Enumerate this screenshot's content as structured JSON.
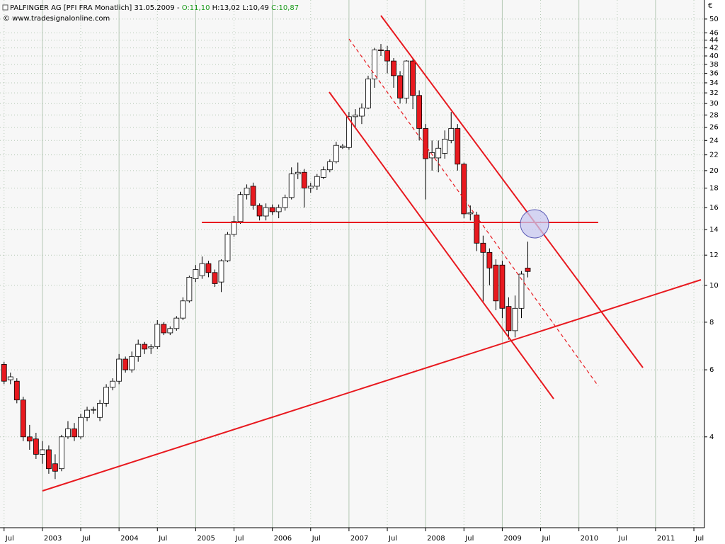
{
  "chart_data": {
    "type": "candlestick",
    "title": "PALFINGER AG [PFI FRA  Monatlich] 31.05.2009 -",
    "ohlc_labels": [
      "O:11,10",
      "H:13,02",
      "L:10,49",
      "C:10,87"
    ],
    "credit": "© www.tradesignalonline.com",
    "currency": "€",
    "log_y": true,
    "grid": true,
    "up_color": "#ffffff",
    "down_color": "#e8191f",
    "x": [
      "2002-07",
      "2002-08",
      "2002-09",
      "2002-10",
      "2002-11",
      "2002-12",
      "2003-01",
      "2003-02",
      "2003-03",
      "2003-04",
      "2003-05",
      "2003-06",
      "2003-07",
      "2003-08",
      "2003-09",
      "2003-10",
      "2003-11",
      "2003-12",
      "2004-01",
      "2004-02",
      "2004-03",
      "2004-04",
      "2004-05",
      "2004-06",
      "2004-07",
      "2004-08",
      "2004-09",
      "2004-10",
      "2004-11",
      "2004-12",
      "2005-01",
      "2005-02",
      "2005-03",
      "2005-04",
      "2005-05",
      "2005-06",
      "2005-07",
      "2005-08",
      "2005-09",
      "2005-10",
      "2005-11",
      "2005-12",
      "2006-01",
      "2006-02",
      "2006-03",
      "2006-04",
      "2006-05",
      "2006-06",
      "2006-07",
      "2006-08",
      "2006-09",
      "2006-10",
      "2006-11",
      "2006-12",
      "2007-01",
      "2007-02",
      "2007-03",
      "2007-04",
      "2007-05",
      "2007-06",
      "2007-07",
      "2007-08",
      "2007-09",
      "2007-10",
      "2007-11",
      "2007-12",
      "2008-01",
      "2008-02",
      "2008-03",
      "2008-04",
      "2008-05",
      "2008-06",
      "2008-07",
      "2008-08",
      "2008-09",
      "2008-10",
      "2008-11",
      "2008-12",
      "2009-01",
      "2009-02",
      "2009-03",
      "2009-04",
      "2009-05"
    ],
    "open": [
      6.2,
      5.65,
      5.6,
      5.0,
      4.0,
      3.95,
      3.6,
      3.7,
      3.4,
      3.3,
      4.0,
      4.2,
      4.0,
      4.5,
      4.7,
      4.5,
      4.9,
      5.4,
      5.6,
      6.4,
      6.0,
      6.5,
      7.0,
      6.85,
      6.9,
      7.9,
      7.5,
      7.7,
      8.2,
      9.1,
      10.4,
      10.6,
      11.4,
      10.8,
      10.2,
      11.6,
      13.6,
      14.7,
      17.3,
      18.2,
      16.2,
      15.2,
      16.0,
      15.6,
      16.0,
      17.0,
      19.6,
      19.8,
      18.0,
      18.2,
      19.2,
      20.1,
      21.1,
      23.0,
      23.0,
      27.7,
      27.8,
      29.2,
      34.8,
      41.5,
      41.3,
      38.8,
      35.5,
      31.0,
      38.8,
      31.5,
      25.8,
      21.6,
      21.6,
      22.2,
      24.0,
      25.8,
      20.8,
      15.4,
      15.3,
      12.9,
      12.2,
      11.3,
      11.3,
      8.8,
      7.6,
      8.7,
      11.1
    ],
    "high": [
      6.3,
      5.9,
      5.7,
      5.1,
      4.3,
      4.1,
      3.9,
      3.8,
      3.6,
      4.05,
      4.4,
      4.35,
      4.6,
      4.8,
      4.8,
      5.0,
      5.5,
      5.7,
      6.6,
      6.5,
      6.7,
      7.2,
      7.1,
      7.0,
      8.1,
      8.0,
      7.8,
      8.3,
      9.3,
      10.6,
      11.3,
      11.9,
      11.6,
      11.0,
      11.7,
      13.8,
      15.2,
      17.6,
      18.4,
      18.6,
      16.4,
      16.4,
      16.3,
      16.3,
      17.3,
      20.4,
      21.0,
      20.2,
      18.6,
      19.6,
      20.5,
      21.4,
      23.8,
      23.5,
      28.5,
      29.0,
      30.0,
      35.5,
      42.0,
      43.0,
      42.5,
      39.5,
      36.5,
      39.0,
      39.2,
      32.5,
      26.5,
      24.0,
      24.0,
      25.5,
      28.5,
      26.5,
      21.0,
      16.2,
      15.6,
      13.5,
      12.5,
      11.7,
      11.6,
      9.3,
      9.4,
      10.9,
      13.02
    ],
    "low": [
      5.5,
      5.5,
      4.9,
      3.9,
      3.7,
      3.5,
      3.4,
      3.2,
      3.1,
      3.25,
      3.95,
      3.9,
      3.95,
      4.4,
      4.6,
      4.4,
      4.8,
      5.3,
      5.5,
      5.9,
      5.9,
      6.3,
      6.6,
      6.6,
      6.8,
      7.4,
      7.4,
      7.6,
      8.1,
      9.0,
      10.2,
      10.4,
      10.5,
      9.9,
      9.6,
      11.5,
      13.4,
      14.5,
      16.8,
      15.8,
      14.8,
      14.8,
      15.3,
      15.0,
      15.7,
      16.8,
      19.0,
      16.0,
      17.5,
      17.8,
      19.0,
      19.8,
      20.9,
      22.8,
      22.7,
      26.0,
      26.5,
      29.0,
      33.0,
      40.0,
      36.0,
      33.0,
      30.0,
      30.0,
      29.0,
      24.0,
      16.8,
      20.0,
      19.8,
      21.5,
      23.6,
      20.0,
      15.0,
      14.8,
      12.3,
      9.0,
      10.0,
      8.6,
      8.2,
      7.2,
      7.3,
      8.2,
      10.49
    ],
    "close": [
      5.6,
      5.75,
      5.0,
      4.0,
      3.9,
      3.6,
      3.7,
      3.3,
      3.25,
      4.0,
      4.2,
      4.0,
      4.5,
      4.7,
      4.72,
      4.9,
      5.4,
      5.6,
      6.4,
      6.0,
      6.5,
      7.0,
      6.8,
      6.9,
      7.9,
      7.5,
      7.7,
      8.2,
      9.1,
      10.5,
      11.0,
      11.4,
      10.8,
      10.1,
      11.6,
      13.6,
      14.7,
      17.3,
      18.0,
      16.2,
      15.2,
      16.0,
      15.6,
      16.0,
      17.0,
      19.6,
      19.8,
      18.0,
      18.2,
      19.3,
      20.1,
      21.1,
      23.3,
      23.2,
      27.7,
      28.0,
      29.2,
      34.8,
      41.5,
      41.3,
      38.8,
      35.5,
      31.0,
      38.8,
      31.5,
      25.8,
      21.5,
      22.3,
      22.9,
      24.2,
      25.8,
      20.8,
      15.4,
      15.5,
      12.9,
      12.2,
      11.1,
      9.1,
      8.7,
      7.6,
      8.7,
      10.7,
      10.87
    ],
    "xlim": [
      "2002-06-12",
      "2011-08-21"
    ],
    "xticks": [
      {
        "value": "2002-07",
        "label": "Jul"
      },
      {
        "value": "2003-01",
        "label": "2003"
      },
      {
        "value": "2003-07",
        "label": "Jul"
      },
      {
        "value": "2004-01",
        "label": "2004"
      },
      {
        "value": "2004-07",
        "label": "Jul"
      },
      {
        "value": "2005-01",
        "label": "2005"
      },
      {
        "value": "2005-07",
        "label": "Jul"
      },
      {
        "value": "2006-01",
        "label": "2006"
      },
      {
        "value": "2006-07",
        "label": "Jul"
      },
      {
        "value": "2007-01",
        "label": "2007"
      },
      {
        "value": "2007-07",
        "label": "Jul"
      },
      {
        "value": "2008-01",
        "label": "2008"
      },
      {
        "value": "2008-07",
        "label": "Jul"
      },
      {
        "value": "2009-01",
        "label": "2009"
      },
      {
        "value": "2009-07",
        "label": "Jul"
      },
      {
        "value": "2010-01",
        "label": "2010"
      },
      {
        "value": "2010-07",
        "label": "Jul"
      },
      {
        "value": "2011-01",
        "label": "2011"
      },
      {
        "value": "2011-07",
        "label": "Jul"
      }
    ],
    "ylim": [
      2.31,
      56.1
    ],
    "yticks": [
      4,
      6,
      8,
      10,
      12,
      14,
      16,
      18,
      20,
      22,
      24,
      26,
      28,
      30,
      32,
      34,
      36,
      38,
      40,
      42,
      44,
      46,
      50
    ]
  }
}
